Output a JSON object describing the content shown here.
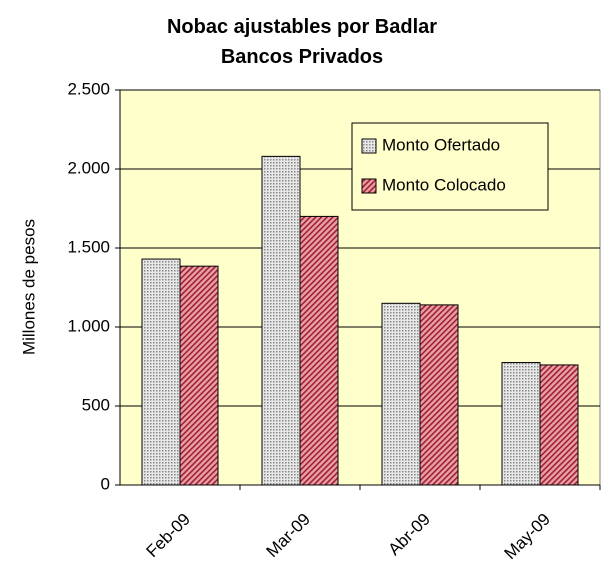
{
  "chart_data": {
    "type": "bar",
    "title": "Nobac ajustables por Badlar Bancos Privados",
    "ylabel": "Millones de pesos",
    "categories": [
      "Feb-09",
      "Mar-09",
      "Abr-09",
      "May-09"
    ],
    "series": [
      {
        "name": "Monto Ofertado",
        "color": "#c0c0c0",
        "values": [
          1430,
          2080,
          1150,
          775
        ]
      },
      {
        "name": "Monto Colocado",
        "color": "#cc6677",
        "values": [
          1385,
          1700,
          1140,
          760
        ]
      }
    ],
    "ylim": [
      0,
      2500
    ],
    "yticks": [
      0,
      500,
      {
        "value": 1000,
        "label": "1.000"
      },
      {
        "value": 1500,
        "label": "1.500"
      },
      {
        "value": 2000,
        "label": "2.000"
      },
      {
        "value": 2500,
        "label": "2.500"
      }
    ],
    "grid": true,
    "legend": "upper right"
  }
}
